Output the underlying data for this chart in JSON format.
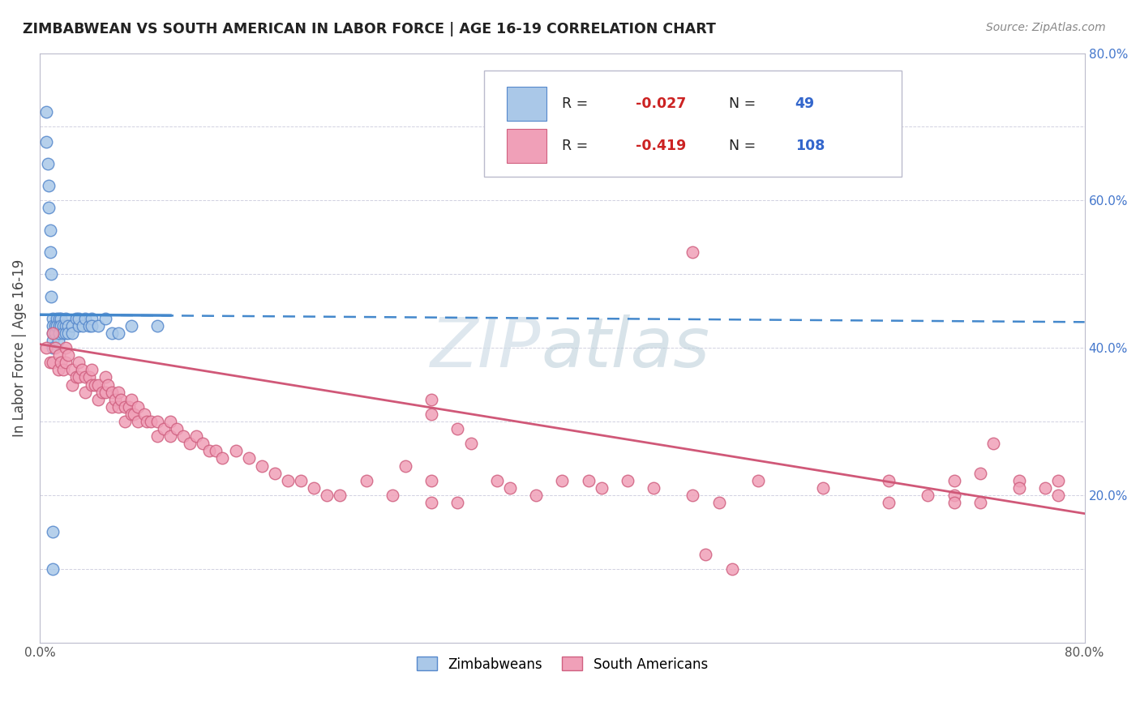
{
  "title": "ZIMBABWEAN VS SOUTH AMERICAN IN LABOR FORCE | AGE 16-19 CORRELATION CHART",
  "source": "Source: ZipAtlas.com",
  "ylabel": "In Labor Force | Age 16-19",
  "xlim": [
    0.0,
    0.8
  ],
  "ylim": [
    0.0,
    0.8
  ],
  "zimbabwean_color": "#aac8e8",
  "zimbabwean_edge": "#5588cc",
  "south_american_color": "#f0a0b8",
  "south_american_edge": "#d06080",
  "trend_zimbabwean_color": "#4488cc",
  "trend_south_american_color": "#d05878",
  "R_zimbabwean": -0.027,
  "N_zimbabwean": 49,
  "R_south_american": -0.419,
  "N_south_american": 108,
  "zim_trend_y0": 0.445,
  "zim_trend_y1": 0.435,
  "sa_trend_y0": 0.405,
  "sa_trend_y1": 0.175,
  "watermark_zip_color": "#c8d8e8",
  "watermark_atlas_color": "#b0c8d8",
  "zim_x": [
    0.005,
    0.005,
    0.006,
    0.007,
    0.007,
    0.008,
    0.008,
    0.009,
    0.009,
    0.01,
    0.01,
    0.01,
    0.01,
    0.01,
    0.012,
    0.012,
    0.013,
    0.013,
    0.014,
    0.015,
    0.015,
    0.015,
    0.016,
    0.016,
    0.018,
    0.018,
    0.02,
    0.02,
    0.02,
    0.022,
    0.022,
    0.025,
    0.025,
    0.028,
    0.03,
    0.03,
    0.033,
    0.035,
    0.038,
    0.04,
    0.04,
    0.045,
    0.05,
    0.055,
    0.06,
    0.07,
    0.09,
    0.01,
    0.01
  ],
  "zim_y": [
    0.72,
    0.68,
    0.65,
    0.62,
    0.59,
    0.56,
    0.53,
    0.5,
    0.47,
    0.44,
    0.43,
    0.42,
    0.41,
    0.4,
    0.43,
    0.42,
    0.44,
    0.43,
    0.41,
    0.44,
    0.43,
    0.42,
    0.44,
    0.43,
    0.43,
    0.42,
    0.43,
    0.44,
    0.42,
    0.43,
    0.42,
    0.43,
    0.42,
    0.44,
    0.43,
    0.44,
    0.43,
    0.44,
    0.43,
    0.44,
    0.43,
    0.43,
    0.44,
    0.42,
    0.42,
    0.43,
    0.43,
    0.15,
    0.1
  ],
  "sa_x": [
    0.005,
    0.008,
    0.01,
    0.01,
    0.012,
    0.014,
    0.015,
    0.016,
    0.018,
    0.02,
    0.02,
    0.022,
    0.025,
    0.025,
    0.028,
    0.03,
    0.03,
    0.032,
    0.035,
    0.035,
    0.038,
    0.04,
    0.04,
    0.042,
    0.045,
    0.045,
    0.048,
    0.05,
    0.05,
    0.052,
    0.055,
    0.055,
    0.058,
    0.06,
    0.06,
    0.062,
    0.065,
    0.065,
    0.068,
    0.07,
    0.07,
    0.072,
    0.075,
    0.075,
    0.08,
    0.082,
    0.085,
    0.09,
    0.09,
    0.095,
    0.1,
    0.1,
    0.105,
    0.11,
    0.115,
    0.12,
    0.125,
    0.13,
    0.135,
    0.14,
    0.15,
    0.16,
    0.17,
    0.18,
    0.19,
    0.2,
    0.21,
    0.22,
    0.23,
    0.25,
    0.27,
    0.28,
    0.3,
    0.3,
    0.32,
    0.33,
    0.35,
    0.36,
    0.38,
    0.4,
    0.42,
    0.43,
    0.45,
    0.47,
    0.5,
    0.52,
    0.55,
    0.6,
    0.65,
    0.7,
    0.73,
    0.5,
    0.51,
    0.53,
    0.3,
    0.3,
    0.32,
    0.65,
    0.68,
    0.7,
    0.72,
    0.75,
    0.77,
    0.78,
    0.78,
    0.75,
    0.72,
    0.7
  ],
  "sa_y": [
    0.4,
    0.38,
    0.42,
    0.38,
    0.4,
    0.37,
    0.39,
    0.38,
    0.37,
    0.4,
    0.38,
    0.39,
    0.37,
    0.35,
    0.36,
    0.38,
    0.36,
    0.37,
    0.36,
    0.34,
    0.36,
    0.37,
    0.35,
    0.35,
    0.35,
    0.33,
    0.34,
    0.36,
    0.34,
    0.35,
    0.34,
    0.32,
    0.33,
    0.34,
    0.32,
    0.33,
    0.32,
    0.3,
    0.32,
    0.33,
    0.31,
    0.31,
    0.32,
    0.3,
    0.31,
    0.3,
    0.3,
    0.3,
    0.28,
    0.29,
    0.3,
    0.28,
    0.29,
    0.28,
    0.27,
    0.28,
    0.27,
    0.26,
    0.26,
    0.25,
    0.26,
    0.25,
    0.24,
    0.23,
    0.22,
    0.22,
    0.21,
    0.2,
    0.2,
    0.22,
    0.2,
    0.24,
    0.22,
    0.19,
    0.19,
    0.27,
    0.22,
    0.21,
    0.2,
    0.22,
    0.22,
    0.21,
    0.22,
    0.21,
    0.2,
    0.19,
    0.22,
    0.21,
    0.19,
    0.2,
    0.27,
    0.53,
    0.12,
    0.1,
    0.33,
    0.31,
    0.29,
    0.22,
    0.2,
    0.19,
    0.23,
    0.22,
    0.21,
    0.22,
    0.2,
    0.21,
    0.19,
    0.22
  ]
}
